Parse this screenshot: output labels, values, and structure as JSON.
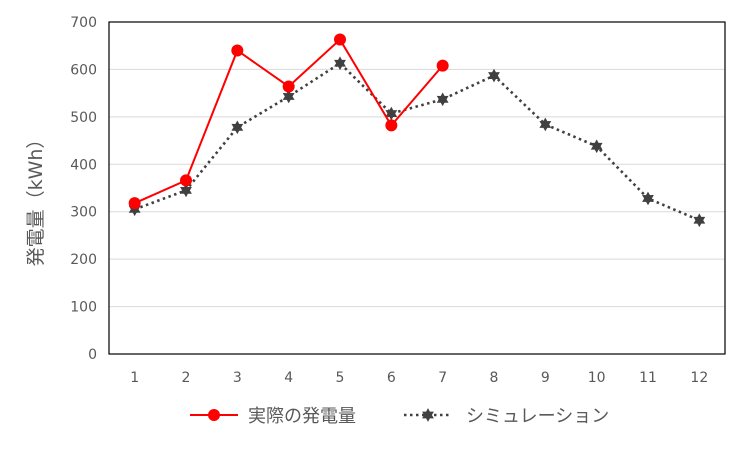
{
  "chart_data": {
    "type": "line",
    "categories": [
      "1",
      "2",
      "3",
      "4",
      "5",
      "6",
      "7",
      "8",
      "9",
      "10",
      "11",
      "12"
    ],
    "series": [
      {
        "name": "実際の発電量",
        "values": [
          318,
          366,
          640,
          564,
          663,
          482,
          608,
          null,
          null,
          null,
          null,
          null
        ],
        "color": "#ff0000",
        "style": "solid",
        "marker": "circle"
      },
      {
        "name": "シミュレーション",
        "values": [
          305,
          345,
          478,
          543,
          613,
          507,
          537,
          587,
          484,
          438,
          328,
          282
        ],
        "color": "#404040",
        "style": "dotted",
        "marker": "star"
      }
    ],
    "ylabel": "発電量（kWh）",
    "xlabel": "",
    "ylim": [
      0,
      700
    ],
    "yticks": [
      0,
      100,
      200,
      300,
      400,
      500,
      600,
      700
    ],
    "grid": true,
    "legend": "bottom"
  }
}
